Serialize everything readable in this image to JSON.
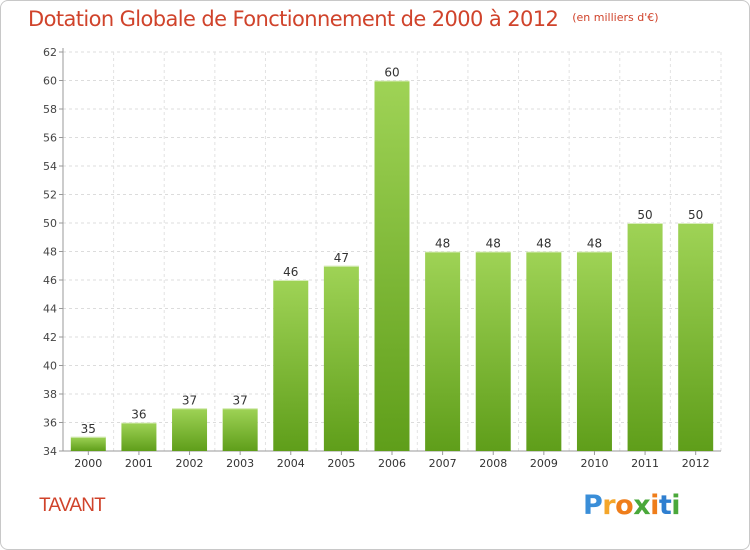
{
  "chart_data": {
    "type": "bar",
    "title": "Dotation Globale de Fonctionnement de 2000 à 2012",
    "subtitle": "(en milliers d'€)",
    "categories": [
      "2000",
      "2001",
      "2002",
      "2003",
      "2004",
      "2005",
      "2006",
      "2007",
      "2008",
      "2009",
      "2010",
      "2011",
      "2012"
    ],
    "values": [
      35,
      36,
      37,
      37,
      46,
      47,
      60,
      48,
      48,
      48,
      48,
      50,
      50
    ],
    "data_labels": [
      "35",
      "36",
      "37",
      "37",
      "46",
      "47",
      "60",
      "48",
      "48",
      "48",
      "48",
      "50",
      "50"
    ],
    "ylim": [
      34,
      62
    ],
    "yticks": [
      "34",
      "36",
      "38",
      "40",
      "42",
      "44",
      "46",
      "48",
      "50",
      "52",
      "54",
      "56",
      "58",
      "60",
      "62"
    ],
    "grid": true,
    "bar_color_top": "#9fd356",
    "bar_color_bottom": "#5f9e1a"
  },
  "footer": {
    "commune": "TAVANT"
  },
  "logo": {
    "letters": [
      "P",
      "r",
      "o",
      "x",
      "i",
      "t",
      "i"
    ],
    "colors": [
      "#3a8ed8",
      "#f4a62a",
      "#ef7d1a",
      "#4aa83a",
      "#ef7d1a",
      "#2f7fd0",
      "#4aa83a"
    ]
  }
}
